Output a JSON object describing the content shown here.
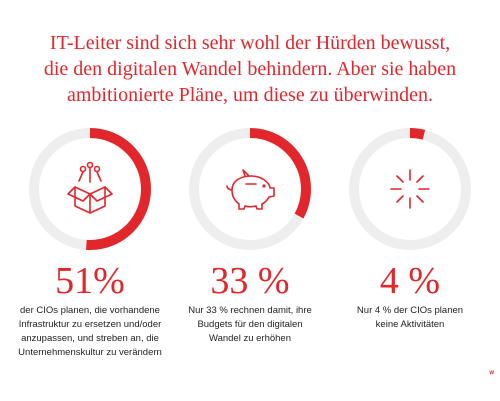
{
  "headline": [
    "IT-Leiter sind sich sehr wohl der Hürden bewusst,",
    "die den digitalen Wandel behindern. Aber sie haben",
    "ambitionierte Pläne, um diese zu überwinden."
  ],
  "colors": {
    "accent": "#e1262c",
    "track": "#eeeeee",
    "text": "#222222"
  },
  "chart_data": {
    "type": "pie",
    "style": "donut-progress",
    "items": [
      {
        "value": 51,
        "value_label": "51%",
        "icon": "open-box-icon",
        "description": [
          "der CIOs planen, die vorhandene",
          "Infrastruktur zu ersetzen und/oder",
          "anzupassen, und streben an, die",
          "Unternehmenskultur zu verändern"
        ]
      },
      {
        "value": 33,
        "value_label": "33 %",
        "icon": "piggy-bank-icon",
        "description": [
          "Nur 33 % rechnen damit, ihre",
          "Budgets für den digitalen",
          "Wandel zu erhöhen"
        ]
      },
      {
        "value": 4,
        "value_label": "4 %",
        "icon": "burst-icon",
        "description": [
          "Nur 4 % der CIOs planen",
          "keine Aktivitäten"
        ]
      }
    ]
  },
  "corner_mark": "w"
}
